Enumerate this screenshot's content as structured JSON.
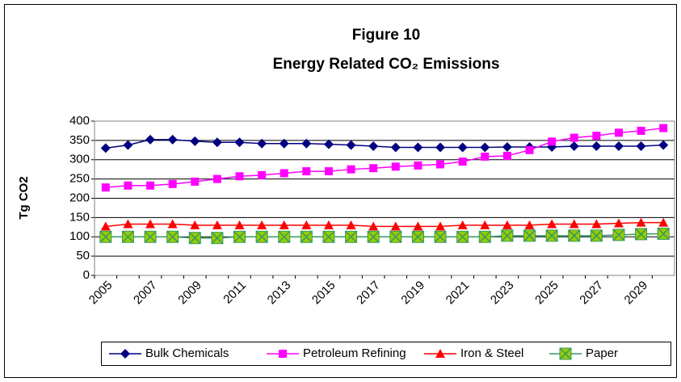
{
  "chart_data": {
    "type": "line",
    "title": "Figure 10",
    "subtitle": "Energy Related CO₂ Emissions",
    "y_label": "Tg CO2",
    "categories": [
      "2005",
      null,
      "2007",
      null,
      "2009",
      null,
      "2011",
      null,
      "2013",
      null,
      "2015",
      null,
      "2017",
      null,
      "2019",
      null,
      "2021",
      null,
      "2023",
      null,
      "2025",
      null,
      "2027",
      null,
      "2029",
      null
    ],
    "series": [
      {
        "name": "Bulk Chemicals",
        "color": "#000080",
        "marker": "diamond",
        "marker_color": "#000080",
        "values": [
          330,
          338,
          352,
          352,
          348,
          345,
          345,
          342,
          342,
          342,
          340,
          338,
          335,
          332,
          332,
          332,
          332,
          332,
          333,
          333,
          333,
          335,
          335,
          335,
          335,
          338
        ]
      },
      {
        "name": "Petroleum Refining",
        "color": "#ff00ff",
        "marker": "square",
        "marker_color": "#ff00ff",
        "values": [
          228,
          233,
          233,
          237,
          243,
          250,
          257,
          260,
          265,
          270,
          270,
          275,
          278,
          282,
          285,
          288,
          295,
          308,
          310,
          325,
          347,
          357,
          362,
          370,
          375,
          382
        ]
      },
      {
        "name": "Iron & Steel",
        "color": "#ff0000",
        "marker": "triangle",
        "marker_color": "#ff0000",
        "values": [
          127,
          133,
          133,
          133,
          130,
          130,
          130,
          130,
          130,
          130,
          130,
          130,
          127,
          127,
          127,
          127,
          130,
          130,
          130,
          130,
          133,
          133,
          133,
          135,
          137,
          137
        ]
      },
      {
        "name": "Paper",
        "color": "#339966",
        "marker": "cross-square",
        "marker_color": "#99cc00",
        "values": [
          100,
          100,
          100,
          100,
          97,
          97,
          100,
          100,
          100,
          100,
          100,
          100,
          100,
          100,
          100,
          100,
          100,
          100,
          103,
          103,
          103,
          103,
          103,
          105,
          107,
          108
        ]
      }
    ],
    "ylim": [
      0,
      400
    ],
    "yticks": [
      0,
      50,
      100,
      150,
      200,
      250,
      300,
      350,
      400
    ],
    "grid": true,
    "legend": "bottom"
  }
}
